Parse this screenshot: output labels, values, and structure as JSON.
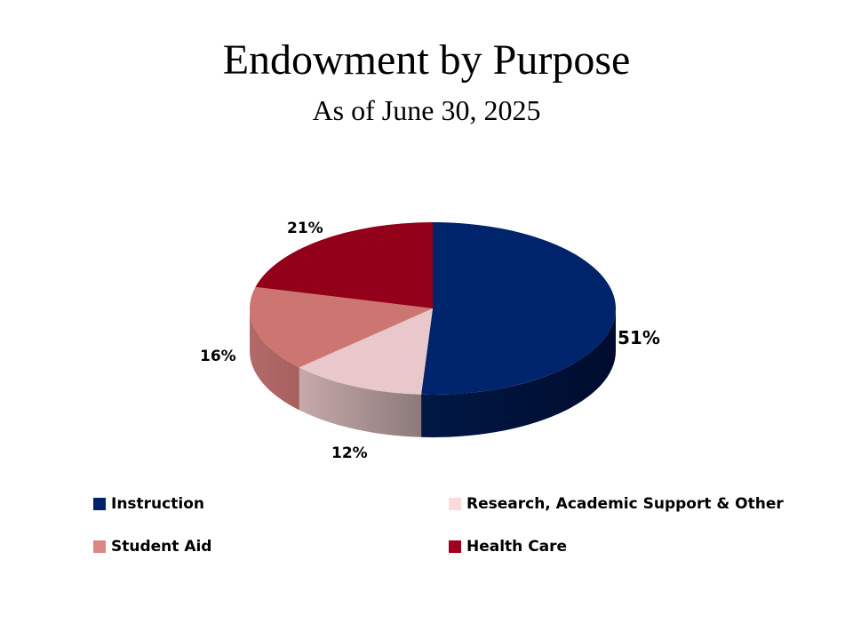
{
  "title": "Endowment by Purpose",
  "subtitle": "As of June 30, 2025",
  "chart_data": {
    "type": "pie",
    "title": "Endowment by Purpose",
    "subtitle": "As of June 30, 2025",
    "categories": [
      "Instruction",
      "Research, Academic Support & Other",
      "Student Aid",
      "Health Care"
    ],
    "values": [
      51,
      12,
      16,
      21
    ],
    "labels": [
      "51%",
      "12%",
      "16%",
      "21%"
    ],
    "colors": [
      "#00246b",
      "#e8c8ca",
      "#cd7571",
      "#930019"
    ],
    "style": "3d",
    "legend_position": "bottom"
  },
  "legend": [
    {
      "label": "Instruction",
      "color": "#00246b"
    },
    {
      "label": "Research, Academic Support & Other",
      "color": "#fadadb"
    },
    {
      "label": "Student Aid",
      "color": "#dc8585"
    },
    {
      "label": "Health Care",
      "color": "#a00020"
    }
  ]
}
